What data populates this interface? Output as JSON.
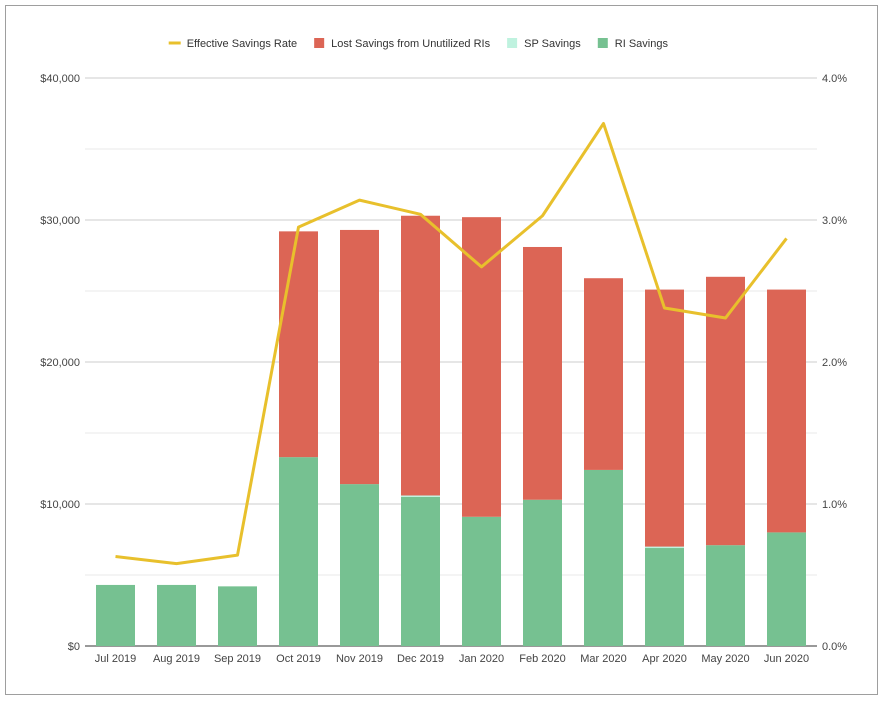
{
  "chart_data": {
    "type": "bar",
    "stacked": true,
    "categories": [
      "Jul 2019",
      "Aug 2019",
      "Sep 2019",
      "Oct 2019",
      "Nov 2019",
      "Dec 2019",
      "Jan 2020",
      "Feb 2020",
      "Mar 2020",
      "Apr 2020",
      "May 2020",
      "Jun 2020"
    ],
    "series": [
      {
        "name": "RI Savings",
        "type": "bar",
        "axis": "left",
        "color": "#76c191",
        "values": [
          4300,
          4300,
          4200,
          13300,
          11400,
          10500,
          9100,
          10300,
          12400,
          6900,
          7100,
          8000
        ]
      },
      {
        "name": "SP Savings",
        "type": "bar",
        "axis": "left",
        "color": "#bff2df",
        "values": [
          0,
          0,
          0,
          0,
          0,
          100,
          0,
          0,
          0,
          100,
          0,
          0
        ]
      },
      {
        "name": "Lost Savings from Unutilized RIs",
        "type": "bar",
        "axis": "left",
        "color": "#dc6555",
        "values": [
          0,
          0,
          0,
          15900,
          17900,
          19700,
          21100,
          17800,
          13500,
          18100,
          18900,
          17100
        ]
      },
      {
        "name": "Effective Savings Rate",
        "type": "line",
        "axis": "right",
        "color": "#e8c02c",
        "values": [
          0.63,
          0.58,
          0.64,
          2.95,
          3.14,
          3.04,
          2.67,
          3.03,
          3.68,
          2.38,
          2.31,
          2.87
        ]
      }
    ],
    "legend_order": [
      "Effective Savings Rate",
      "Lost Savings from Unutilized RIs",
      "SP Savings",
      "RI Savings"
    ],
    "legend_position": "top",
    "y_left": {
      "min": 0,
      "max": 40000,
      "ticks": [
        "$0",
        "$10,000",
        "$20,000",
        "$30,000",
        "$40,000"
      ]
    },
    "y_right": {
      "min": 0,
      "max": 4,
      "ticks": [
        "0.0%",
        "1.0%",
        "2.0%",
        "3.0%",
        "4.0%"
      ]
    },
    "grid": true
  }
}
